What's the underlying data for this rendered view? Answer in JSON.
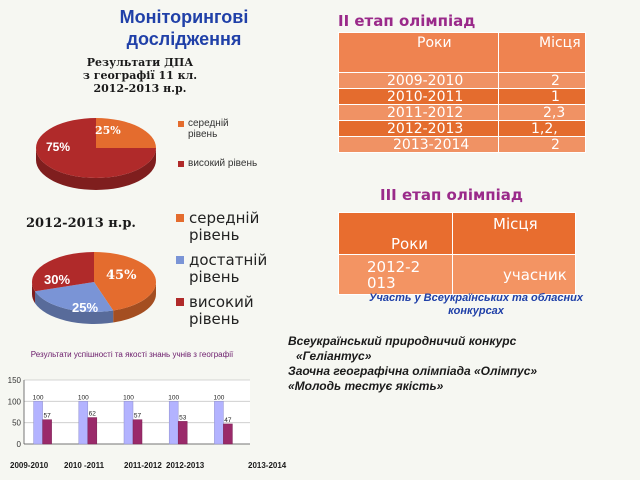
{
  "main_title": "Моніторингові дослідження",
  "stage2": {
    "title": "ІІ етап олімпіад",
    "headers": [
      "Роки",
      "Місця"
    ],
    "rows": [
      {
        "year": "2009-2010",
        "place": "2"
      },
      {
        "year": "2010-2011",
        "place": "1"
      },
      {
        "year": "2011-2012",
        "place": "2,3"
      },
      {
        "year": "2012-2013",
        "place": "1,2,"
      },
      {
        "year": "2013-2014",
        "place": "2"
      }
    ]
  },
  "stage3": {
    "title": "ІІІ етап олімпіад",
    "headers": [
      "Роки",
      "Місця"
    ],
    "year": "2012-2013",
    "place": "учасник"
  },
  "participation_note": "Участь у Всеукраїнських та обласних конкурсах",
  "contests": [
    "Всеукраїнський природничий конкурс",
    "«Геліантус»",
    "Заочна географічна олімпіада «Олімпус»",
    "«Молодь тестує якість»"
  ],
  "colors": {
    "orange": "#e46c2e",
    "red": "#b02a2a",
    "blue": "#7a94d6",
    "bar_blue": "#b3b3ff",
    "bar_purple": "#9a2a6a",
    "title_blue": "#2040a8",
    "stage_purple": "#9a2a8a"
  },
  "chart_data": [
    {
      "type": "pie",
      "title": "Результати ДПА з географії 11 кл. 2012-2013 н.р.",
      "slices": [
        {
          "label": "середній рівень",
          "value": 25,
          "color": "#e46c2e"
        },
        {
          "label": "високий рівень",
          "value": 75,
          "color": "#b02a2a"
        }
      ],
      "data_labels": [
        "25%",
        "75%"
      ],
      "legend_position": "right"
    },
    {
      "type": "pie",
      "title": "2012-2013 н.р.",
      "slices": [
        {
          "label": "середній рівень",
          "value": 45,
          "color": "#e46c2e"
        },
        {
          "label": "достатній рівень",
          "value": 25,
          "color": "#7a94d6"
        },
        {
          "label": "високий рівень",
          "value": 30,
          "color": "#b02a2a"
        }
      ],
      "data_labels": [
        "45%",
        "25%",
        "30%"
      ],
      "legend_position": "right"
    },
    {
      "type": "bar",
      "title": "Результати успішності та якості знань учнів з географії",
      "categories": [
        "2009-2010",
        "2010 -2011",
        "2011-2012",
        "2012-2013",
        "2013-2014"
      ],
      "series": [
        {
          "values": [
            100,
            100,
            100,
            100,
            100
          ],
          "color": "#b3b3ff"
        },
        {
          "values": [
            57,
            62,
            57,
            53,
            47
          ],
          "color": "#9a2a6a"
        }
      ],
      "data_labels": [
        [
          "100",
          "100",
          "100",
          "100",
          "100"
        ],
        [
          "57",
          "62",
          "57",
          "53",
          "47"
        ]
      ],
      "yticks": [
        "0",
        "50",
        "100",
        "150"
      ],
      "ylim": [
        0,
        150
      ],
      "grid": true
    }
  ]
}
